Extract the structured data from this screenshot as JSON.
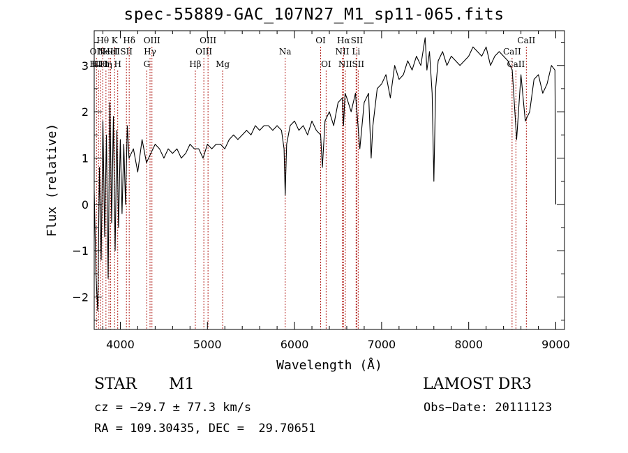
{
  "chart_data": {
    "type": "line",
    "title": "spec-55889-GAC_107N27_M1_sp11-065.fits",
    "xlabel": "Wavelength (Å)",
    "ylabel": "Flux (relative)",
    "xlim": [
      3700,
      9100
    ],
    "ylim": [
      -2.7,
      3.75
    ],
    "xticks": [
      4000,
      5000,
      6000,
      7000,
      8000,
      9000
    ],
    "yticks": [
      -2,
      -1,
      0,
      1,
      2,
      3
    ],
    "series": [
      {
        "name": "spectrum",
        "x": [
          3700,
          3720,
          3740,
          3760,
          3780,
          3800,
          3820,
          3840,
          3860,
          3880,
          3900,
          3920,
          3940,
          3960,
          3980,
          4000,
          4020,
          4040,
          4060,
          4080,
          4100,
          4150,
          4200,
          4250,
          4300,
          4350,
          4400,
          4450,
          4500,
          4550,
          4600,
          4650,
          4700,
          4750,
          4800,
          4850,
          4900,
          4950,
          5000,
          5050,
          5100,
          5150,
          5200,
          5250,
          5300,
          5350,
          5400,
          5450,
          5500,
          5550,
          5600,
          5650,
          5700,
          5750,
          5800,
          5850,
          5880,
          5893,
          5910,
          5950,
          6000,
          6050,
          6100,
          6150,
          6200,
          6250,
          6300,
          6320,
          6350,
          6400,
          6450,
          6500,
          6550,
          6563,
          6580,
          6600,
          6650,
          6700,
          6750,
          6800,
          6850,
          6880,
          6900,
          6950,
          7000,
          7050,
          7100,
          7150,
          7200,
          7250,
          7300,
          7350,
          7400,
          7450,
          7500,
          7520,
          7550,
          7580,
          7600,
          7620,
          7650,
          7700,
          7750,
          7800,
          7850,
          7900,
          7950,
          8000,
          8050,
          8100,
          8150,
          8200,
          8250,
          8300,
          8350,
          8400,
          8450,
          8500,
          8550,
          8600,
          8650,
          8700,
          8750,
          8800,
          8850,
          8900,
          8950,
          8990,
          9000
        ],
        "values": [
          0.3,
          -1.5,
          -2.3,
          0.8,
          -1.2,
          1.8,
          -0.7,
          1.5,
          -1.6,
          2.2,
          -0.4,
          1.9,
          -1.0,
          1.6,
          -0.5,
          1.4,
          -0.2,
          1.3,
          0.0,
          1.7,
          1.0,
          1.2,
          0.7,
          1.4,
          0.9,
          1.1,
          1.3,
          1.2,
          1.0,
          1.2,
          1.1,
          1.2,
          1.0,
          1.1,
          1.3,
          1.2,
          1.2,
          1.0,
          1.3,
          1.2,
          1.3,
          1.3,
          1.2,
          1.4,
          1.5,
          1.4,
          1.5,
          1.6,
          1.5,
          1.7,
          1.6,
          1.7,
          1.7,
          1.6,
          1.7,
          1.6,
          1.2,
          0.2,
          1.3,
          1.7,
          1.8,
          1.6,
          1.7,
          1.5,
          1.8,
          1.6,
          1.5,
          0.8,
          1.8,
          2.0,
          1.7,
          2.2,
          2.3,
          1.7,
          2.4,
          2.3,
          2.0,
          2.4,
          1.2,
          2.2,
          2.4,
          1.0,
          1.7,
          2.5,
          2.6,
          2.8,
          2.3,
          3.0,
          2.7,
          2.8,
          3.1,
          2.9,
          3.2,
          3.0,
          3.6,
          2.9,
          3.3,
          2.4,
          0.5,
          2.5,
          3.1,
          3.3,
          3.0,
          3.2,
          3.1,
          3.0,
          3.1,
          3.2,
          3.4,
          3.3,
          3.2,
          3.4,
          3.0,
          3.2,
          3.3,
          3.2,
          3.1,
          2.9,
          1.4,
          2.8,
          1.8,
          2.0,
          2.7,
          2.8,
          2.4,
          2.6,
          3.0,
          2.9,
          0.0
        ]
      }
    ],
    "line_marks": [
      {
        "wave": 3726,
        "label": "OII",
        "row": 1
      },
      {
        "wave": 3750,
        "label": "H10",
        "row": 2
      },
      {
        "wave": 3771,
        "label": "H11",
        "row": 2
      },
      {
        "wave": 3798,
        "label": "Hθ",
        "row": 0
      },
      {
        "wave": 3835,
        "label": "Hη",
        "row": 2
      },
      {
        "wave": 3869,
        "label": "NeIII",
        "row": 1
      },
      {
        "wave": 3889,
        "label": "HeI",
        "row": 1
      },
      {
        "wave": 3934,
        "label": "K",
        "row": 0
      },
      {
        "wave": 3970,
        "label": "H",
        "row": 2
      },
      {
        "wave": 4070,
        "label": "SII",
        "row": 1
      },
      {
        "wave": 4102,
        "label": "Hδ",
        "row": 0
      },
      {
        "wave": 4304,
        "label": "G",
        "row": 2
      },
      {
        "wave": 4341,
        "label": "Hγ",
        "row": 1
      },
      {
        "wave": 4363,
        "label": "OIII",
        "row": 0
      },
      {
        "wave": 4861,
        "label": "Hβ",
        "row": 2
      },
      {
        "wave": 4959,
        "label": "OIII",
        "row": 1
      },
      {
        "wave": 5007,
        "label": "OIII",
        "row": 0
      },
      {
        "wave": 5175,
        "label": "Mg",
        "row": 2
      },
      {
        "wave": 5893,
        "label": "Na",
        "row": 1
      },
      {
        "wave": 6300,
        "label": "OI",
        "row": 0
      },
      {
        "wave": 6363,
        "label": "OI",
        "row": 2
      },
      {
        "wave": 6548,
        "label": "NII",
        "row": 1
      },
      {
        "wave": 6563,
        "label": "Hα",
        "row": 0
      },
      {
        "wave": 6583,
        "label": "NII",
        "row": 2
      },
      {
        "wave": 6707,
        "label": "Li",
        "row": 1
      },
      {
        "wave": 6716,
        "label": "SII",
        "row": 0
      },
      {
        "wave": 6731,
        "label": "SII",
        "row": 2
      },
      {
        "wave": 8498,
        "label": "CaII",
        "row": 1
      },
      {
        "wave": 8542,
        "label": "CaII",
        "row": 2
      },
      {
        "wave": 8662,
        "label": "CaII",
        "row": 0
      }
    ]
  },
  "info": {
    "object_type": "STAR",
    "object_class": "M1",
    "survey": "LAMOST DR3",
    "redshift_text": "cz = −29.7 ± 77.3 km/s",
    "obs_date_text": "Obs−Date: 20111123",
    "coords_text": "RA = 109.30435, DEC =  29.70651"
  }
}
